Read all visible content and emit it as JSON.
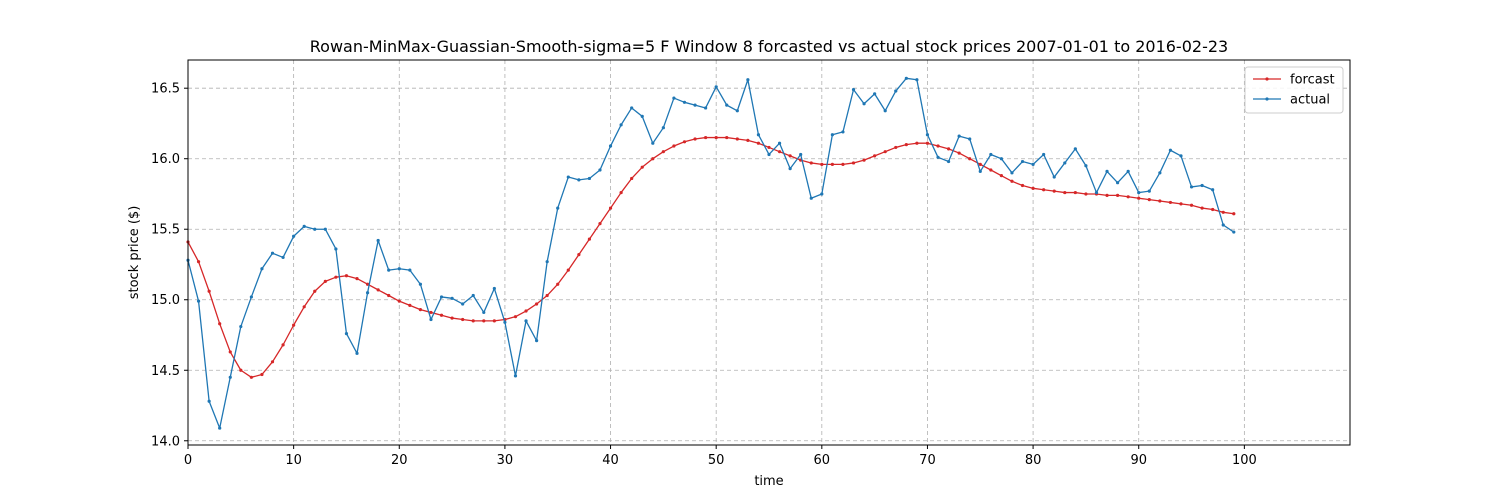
{
  "chart_data": {
    "type": "line",
    "title": "Rowan-MinMax-Guassian-Smooth-sigma=5 F Window 8 forcasted vs actual stock prices 2007-01-01 to 2016-02-23",
    "xlabel": "time",
    "ylabel": "stock price ($)",
    "xlim": [
      0,
      110
    ],
    "ylim": [
      13.97,
      16.7
    ],
    "xticks": [
      0,
      10,
      20,
      30,
      40,
      50,
      60,
      70,
      80,
      90,
      100
    ],
    "yticks": [
      14.0,
      14.5,
      15.0,
      15.5,
      16.0,
      16.5
    ],
    "grid": true,
    "legend_position": "top-right",
    "series": [
      {
        "name": "forcast",
        "color": "#d62728",
        "x": [
          0,
          1,
          2,
          3,
          4,
          5,
          6,
          7,
          8,
          9,
          10,
          11,
          12,
          13,
          14,
          15,
          16,
          17,
          18,
          19,
          20,
          21,
          22,
          23,
          24,
          25,
          26,
          27,
          28,
          29,
          30,
          31,
          32,
          33,
          34,
          35,
          36,
          37,
          38,
          39,
          40,
          41,
          42,
          43,
          44,
          45,
          46,
          47,
          48,
          49,
          50,
          51,
          52,
          53,
          54,
          55,
          56,
          57,
          58,
          59,
          60,
          61,
          62,
          63,
          64,
          65,
          66,
          67,
          68,
          69,
          70,
          71,
          72,
          73,
          74,
          75,
          76,
          77,
          78,
          79,
          80,
          81,
          82,
          83,
          84,
          85,
          86,
          87,
          88,
          89,
          90,
          91,
          92,
          93,
          94,
          95,
          96,
          97,
          98,
          99
        ],
        "values": [
          15.41,
          15.27,
          15.06,
          14.83,
          14.63,
          14.5,
          14.45,
          14.47,
          14.56,
          14.68,
          14.82,
          14.95,
          15.06,
          15.13,
          15.16,
          15.17,
          15.15,
          15.11,
          15.07,
          15.03,
          14.99,
          14.96,
          14.93,
          14.91,
          14.89,
          14.87,
          14.86,
          14.85,
          14.85,
          14.85,
          14.86,
          14.88,
          14.92,
          14.97,
          15.03,
          15.11,
          15.21,
          15.32,
          15.43,
          15.54,
          15.65,
          15.76,
          15.86,
          15.94,
          16.0,
          16.05,
          16.09,
          16.12,
          16.14,
          16.15,
          16.15,
          16.15,
          16.14,
          16.13,
          16.11,
          16.08,
          16.05,
          16.02,
          15.99,
          15.97,
          15.96,
          15.96,
          15.96,
          15.97,
          15.99,
          16.02,
          16.05,
          16.08,
          16.1,
          16.11,
          16.11,
          16.09,
          16.07,
          16.04,
          16.0,
          15.96,
          15.92,
          15.88,
          15.84,
          15.81,
          15.79,
          15.78,
          15.77,
          15.76,
          15.76,
          15.75,
          15.75,
          15.74,
          15.74,
          15.73,
          15.72,
          15.71,
          15.7,
          15.69,
          15.68,
          15.67,
          15.65,
          15.64,
          15.62,
          15.61
        ]
      },
      {
        "name": "actual",
        "color": "#1f77b4",
        "x": [
          0,
          1,
          2,
          3,
          4,
          5,
          6,
          7,
          8,
          9,
          10,
          11,
          12,
          13,
          14,
          15,
          16,
          17,
          18,
          19,
          20,
          21,
          22,
          23,
          24,
          25,
          26,
          27,
          28,
          29,
          30,
          31,
          32,
          33,
          34,
          35,
          36,
          37,
          38,
          39,
          40,
          41,
          42,
          43,
          44,
          45,
          46,
          47,
          48,
          49,
          50,
          51,
          52,
          53,
          54,
          55,
          56,
          57,
          58,
          59,
          60,
          61,
          62,
          63,
          64,
          65,
          66,
          67,
          68,
          69,
          70,
          71,
          72,
          73,
          74,
          75,
          76,
          77,
          78,
          79,
          80,
          81,
          82,
          83,
          84,
          85,
          86,
          87,
          88,
          89,
          90,
          91,
          92,
          93,
          94,
          95,
          96,
          97,
          98,
          99
        ],
        "values": [
          15.28,
          14.99,
          14.28,
          14.09,
          14.45,
          14.81,
          15.02,
          15.22,
          15.33,
          15.3,
          15.45,
          15.52,
          15.5,
          15.5,
          15.36,
          14.76,
          14.62,
          15.05,
          15.42,
          15.21,
          15.22,
          15.21,
          15.11,
          14.86,
          15.02,
          15.01,
          14.97,
          15.03,
          14.91,
          15.08,
          14.84,
          14.46,
          14.85,
          14.71,
          15.27,
          15.65,
          15.87,
          15.85,
          15.86,
          15.92,
          16.09,
          16.24,
          16.36,
          16.3,
          16.11,
          16.22,
          16.43,
          16.4,
          16.38,
          16.36,
          16.51,
          16.38,
          16.34,
          16.56,
          16.17,
          16.03,
          16.11,
          15.93,
          16.03,
          15.72,
          15.75,
          16.17,
          16.19,
          16.49,
          16.39,
          16.46,
          16.34,
          16.48,
          16.57,
          16.56,
          16.17,
          16.01,
          15.98,
          16.16,
          16.14,
          15.91,
          16.03,
          16.0,
          15.9,
          15.98,
          15.96,
          16.03,
          15.87,
          15.97,
          16.07,
          15.95,
          15.76,
          15.91,
          15.83,
          15.91,
          15.76,
          15.77,
          15.9,
          16.06,
          16.02,
          15.8,
          15.81,
          15.78,
          15.53,
          15.48
        ]
      }
    ]
  }
}
